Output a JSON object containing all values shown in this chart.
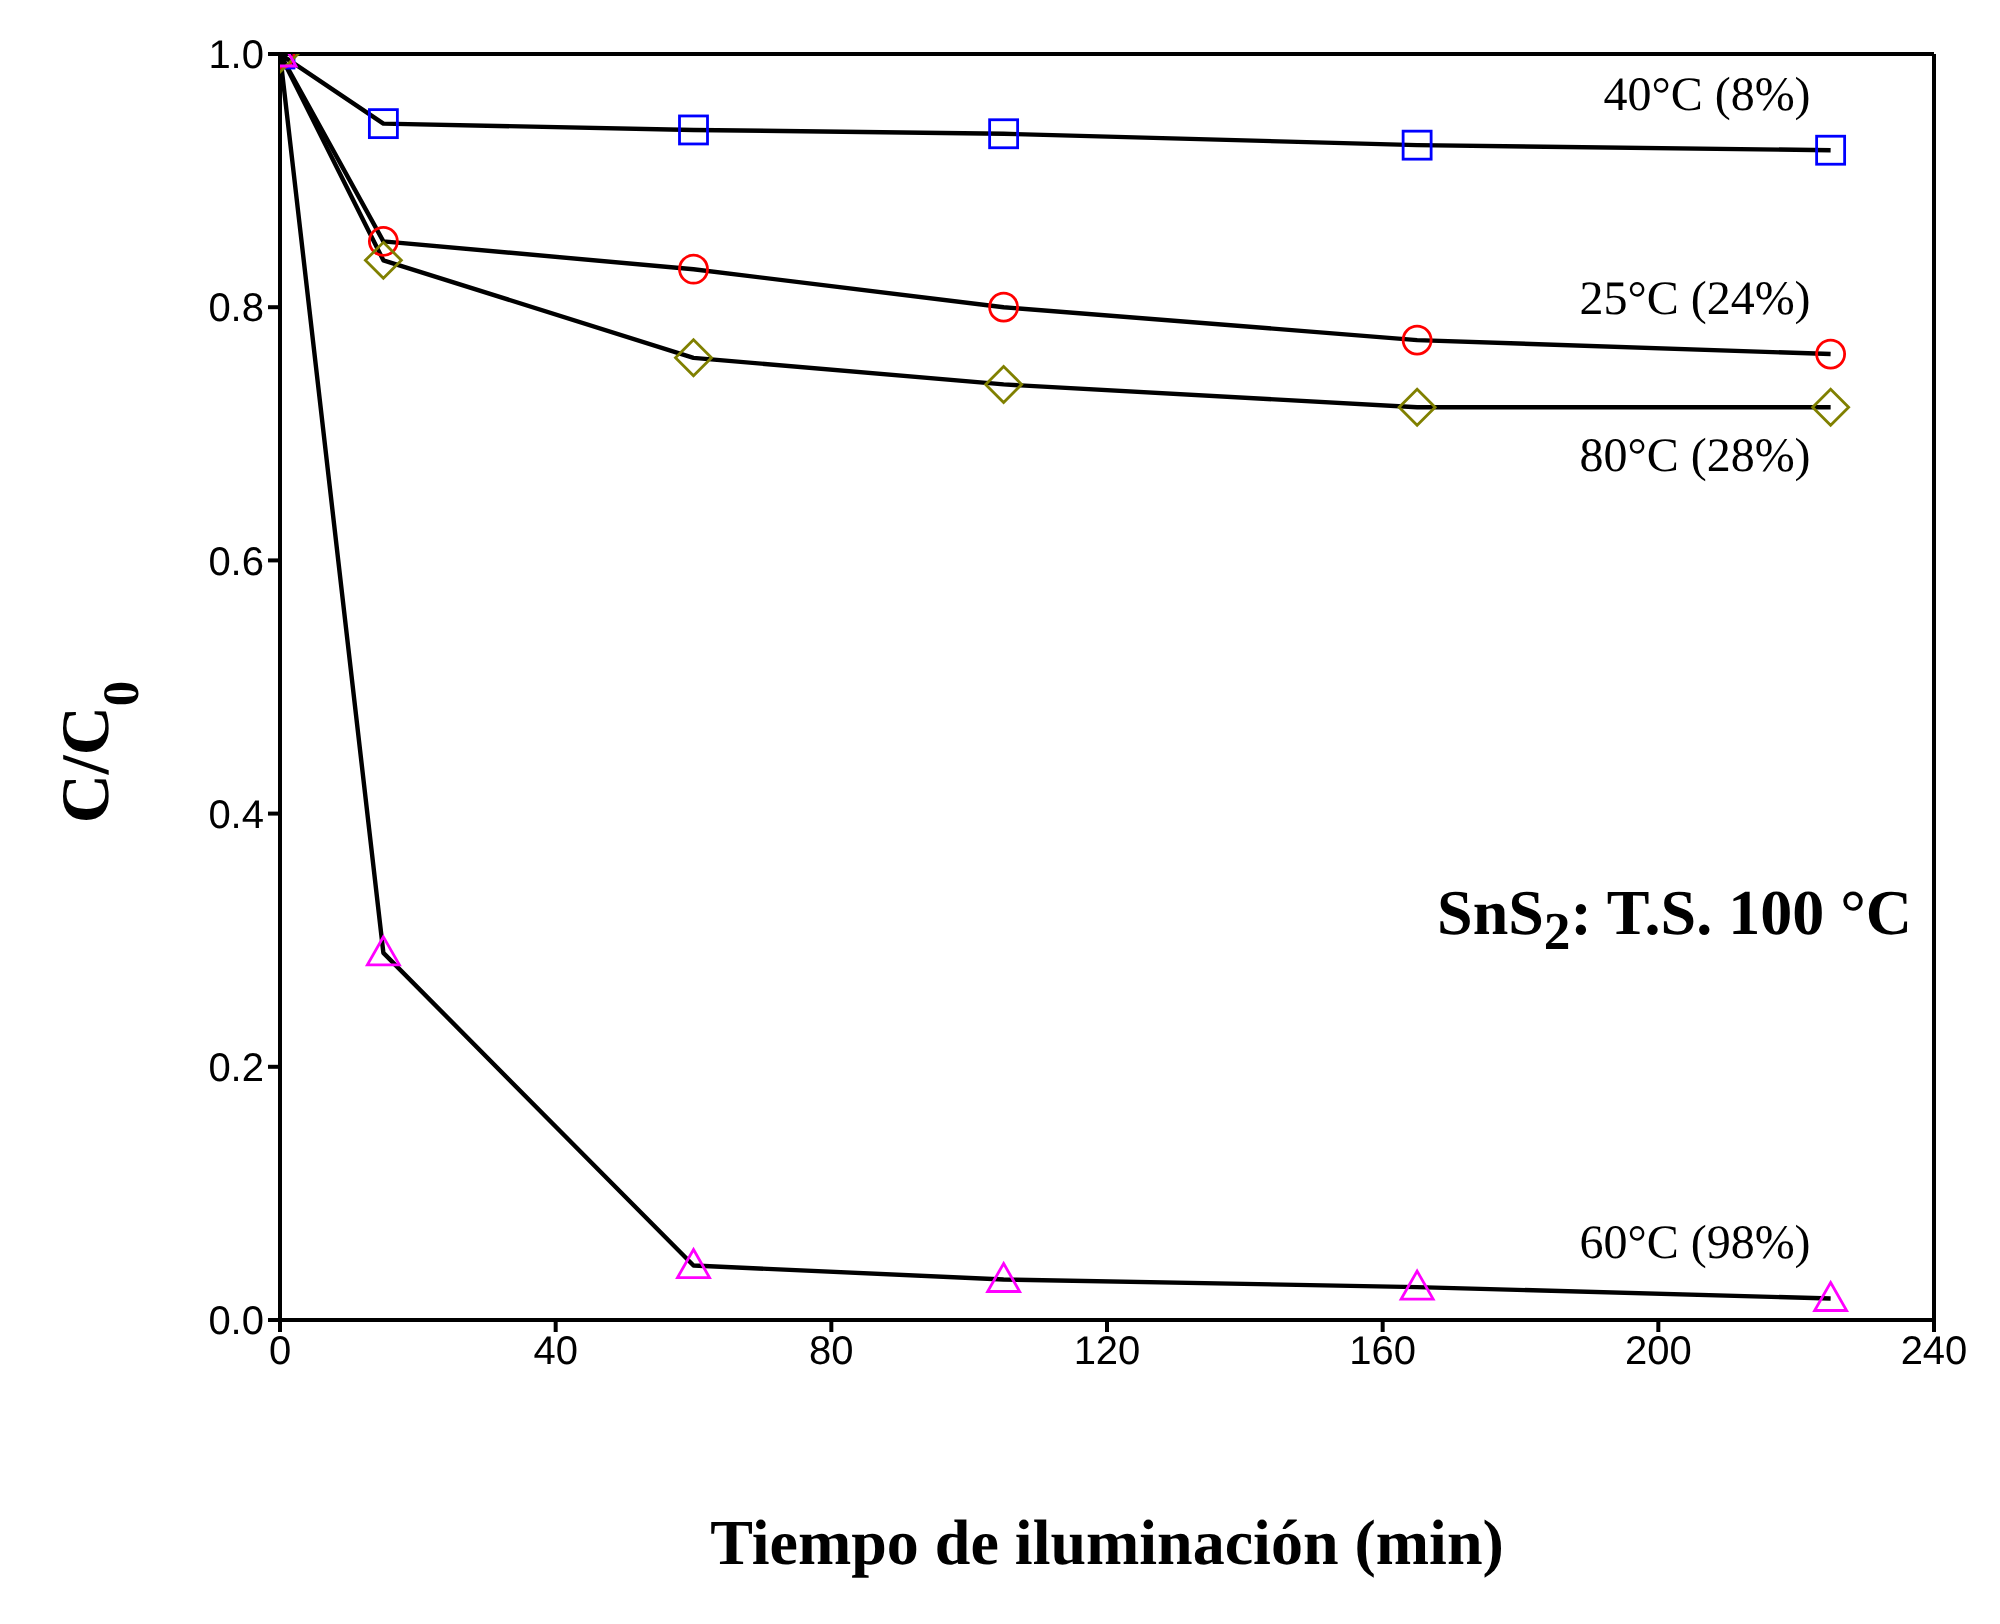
{
  "chart_data": {
    "type": "line",
    "xlabel": "Tiempo de iluminación (min)",
    "ylabel": "C/C$_{0}$",
    "x": [
      0,
      15,
      60,
      105,
      165,
      225
    ],
    "series": [
      {
        "name": "40°C (8%)",
        "color": "#0000ff",
        "marker": "square",
        "values": [
          1.0,
          0.945,
          0.94,
          0.937,
          0.928,
          0.924
        ]
      },
      {
        "name": "25°C (24%)",
        "color": "#ff0000",
        "marker": "circle",
        "values": [
          1.0,
          0.852,
          0.83,
          0.8,
          0.774,
          0.763
        ]
      },
      {
        "name": "80°C (28%)",
        "color": "#808000",
        "marker": "diamond",
        "values": [
          1.0,
          0.837,
          0.76,
          0.739,
          0.721,
          0.721
        ]
      },
      {
        "name": "60°C (98%)",
        "color": "#ff00ff",
        "marker": "triangle",
        "values": [
          1.0,
          0.29,
          0.043,
          0.032,
          0.026,
          0.017
        ]
      }
    ],
    "xlim": [
      0,
      240
    ],
    "xticks": [
      0,
      40,
      80,
      120,
      160,
      200,
      240
    ],
    "ylim": [
      0,
      1.0
    ],
    "yticks": [
      {
        "value": 0,
        "label": "0.0"
      },
      {
        "value": 0.2,
        "label": "0.2"
      },
      {
        "value": 0.4,
        "label": "0.4"
      },
      {
        "value": 0.6,
        "label": "0.6"
      },
      {
        "value": 0.8,
        "label": "0.8"
      },
      {
        "value": 1.0,
        "label": "1.0"
      }
    ],
    "annotations": [
      "SnS$_{2}$: T.S. 100 °C"
    ],
    "grid": false,
    "legend": false,
    "line_style": "solid"
  }
}
